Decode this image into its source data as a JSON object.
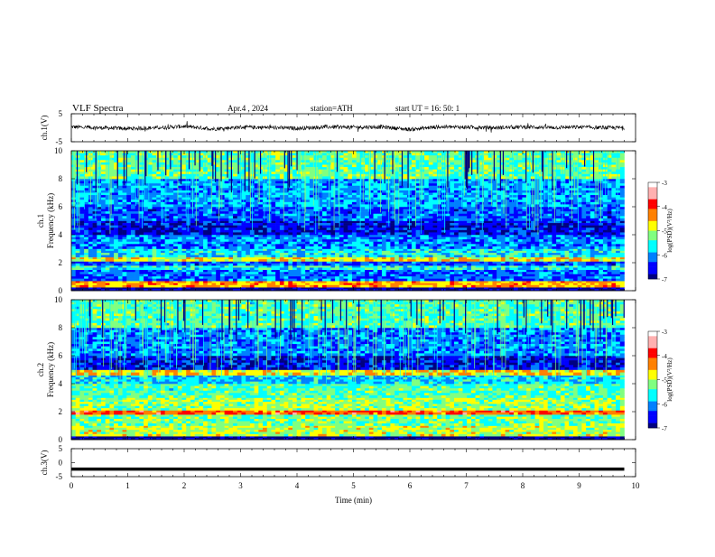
{
  "header": {
    "title": "VLF Spectra",
    "date": "Apr.4 , 2024",
    "station": "station=ATH",
    "start_ut": "start UT = 16: 50: 1"
  },
  "colors": {
    "colormap": [
      "#000080",
      "#0000ff",
      "#0080ff",
      "#00ffff",
      "#80ff80",
      "#ffff00",
      "#ff8000",
      "#ff0000",
      "#ffb0b0",
      "#ffffff"
    ],
    "trace": "#000000"
  },
  "chart_data": [
    {
      "type": "line",
      "panel": "ch1",
      "ylabel": "ch.1(V)",
      "ylim": [
        -5,
        5
      ],
      "yticks": [
        "5",
        "-5"
      ],
      "x": [
        0,
        0.5,
        1,
        1.5,
        2,
        2.5,
        3,
        3.5,
        4,
        4.5,
        5,
        5.5,
        6,
        6.5,
        7,
        7.5,
        8,
        8.5,
        9,
        9.5,
        9.8
      ],
      "y": [
        0.3,
        0,
        -0.3,
        0,
        0.5,
        -0.4,
        0.2,
        0.1,
        -0.2,
        0.3,
        0.2,
        0.3,
        -0.6,
        0.3,
        0.2,
        0,
        0.3,
        0.1,
        0.2,
        0,
        0
      ],
      "xlim": [
        0,
        10
      ]
    },
    {
      "type": "heatmap",
      "panel": "ch1-spectrogram",
      "ylabel": "ch.1 Frequency (kHz)",
      "ylim": [
        0,
        10
      ],
      "yticks": [
        "0",
        "2",
        "4",
        "6",
        "8",
        "10"
      ],
      "xlim": [
        0,
        10
      ],
      "data_end_min": 9.8,
      "colorbar": {
        "label": "log(PSD)(V²/Hz)",
        "ticks": [
          "-3",
          "-4",
          "-5",
          "-6",
          "-7"
        ],
        "range": [
          -7,
          -3
        ]
      },
      "bands": [
        {
          "freq_khz": [
            0,
            0.25
          ],
          "log_psd": -7.0
        },
        {
          "freq_khz": [
            0.25,
            0.7
          ],
          "log_psd": -4.5
        },
        {
          "freq_khz": [
            0.7,
            1.5
          ],
          "log_psd": -6.2
        },
        {
          "freq_khz": [
            1.5,
            1.8
          ],
          "log_psd": -5.6
        },
        {
          "freq_khz": [
            1.8,
            2.1
          ],
          "log_psd": -6.3
        },
        {
          "freq_khz": [
            2.1,
            2.4
          ],
          "log_psd": -4.8
        },
        {
          "freq_khz": [
            2.4,
            3.0
          ],
          "log_psd": -5.7
        },
        {
          "freq_khz": [
            3.0,
            4.0
          ],
          "log_psd": -6.1
        },
        {
          "freq_khz": [
            4.0,
            5.0
          ],
          "log_psd": -6.6
        },
        {
          "freq_khz": [
            5.0,
            6.0
          ],
          "log_psd": -6.3
        },
        {
          "freq_khz": [
            6.0,
            8.0
          ],
          "log_psd": -6.0
        },
        {
          "freq_khz": [
            8.0,
            10.0
          ],
          "log_psd": -5.3
        }
      ]
    },
    {
      "type": "heatmap",
      "panel": "ch2-spectrogram",
      "ylabel": "ch.2 Frequency (kHz)",
      "ylim": [
        0,
        10
      ],
      "yticks": [
        "0",
        "2",
        "4",
        "6",
        "8",
        "10"
      ],
      "xlim": [
        0,
        10
      ],
      "data_end_min": 9.8,
      "colorbar": {
        "label": "log(PSD)(V²/Hz)",
        "ticks": [
          "-3",
          "-4",
          "-5",
          "-6",
          "-7"
        ],
        "range": [
          -7,
          -3
        ]
      },
      "bands": [
        {
          "freq_khz": [
            0,
            0.25
          ],
          "log_psd": -7.0
        },
        {
          "freq_khz": [
            0.25,
            1.0
          ],
          "log_psd": -5.0
        },
        {
          "freq_khz": [
            1.0,
            1.8
          ],
          "log_psd": -5.3
        },
        {
          "freq_khz": [
            1.8,
            2.1
          ],
          "log_psd": -4.1
        },
        {
          "freq_khz": [
            2.1,
            3.0
          ],
          "log_psd": -5.1
        },
        {
          "freq_khz": [
            3.0,
            4.0
          ],
          "log_psd": -5.4
        },
        {
          "freq_khz": [
            4.0,
            4.6
          ],
          "log_psd": -5.8
        },
        {
          "freq_khz": [
            4.6,
            5.0
          ],
          "log_psd": -4.7
        },
        {
          "freq_khz": [
            5.0,
            6.0
          ],
          "log_psd": -6.6
        },
        {
          "freq_khz": [
            6.0,
            8.0
          ],
          "log_psd": -6.1
        },
        {
          "freq_khz": [
            8.0,
            10.0
          ],
          "log_psd": -5.4
        }
      ]
    },
    {
      "type": "line",
      "panel": "ch3",
      "ylabel": "ch.3(V)",
      "ylim": [
        -5,
        5
      ],
      "yticks": [
        "5",
        "0",
        "-5"
      ],
      "x": [
        0,
        9.8
      ],
      "y": [
        -2.3,
        -2.3
      ],
      "xlim": [
        0,
        10
      ],
      "xlabel": "Time (min)",
      "xticks": [
        "0",
        "1",
        "2",
        "3",
        "4",
        "5",
        "6",
        "7",
        "8",
        "9",
        "10"
      ]
    }
  ]
}
